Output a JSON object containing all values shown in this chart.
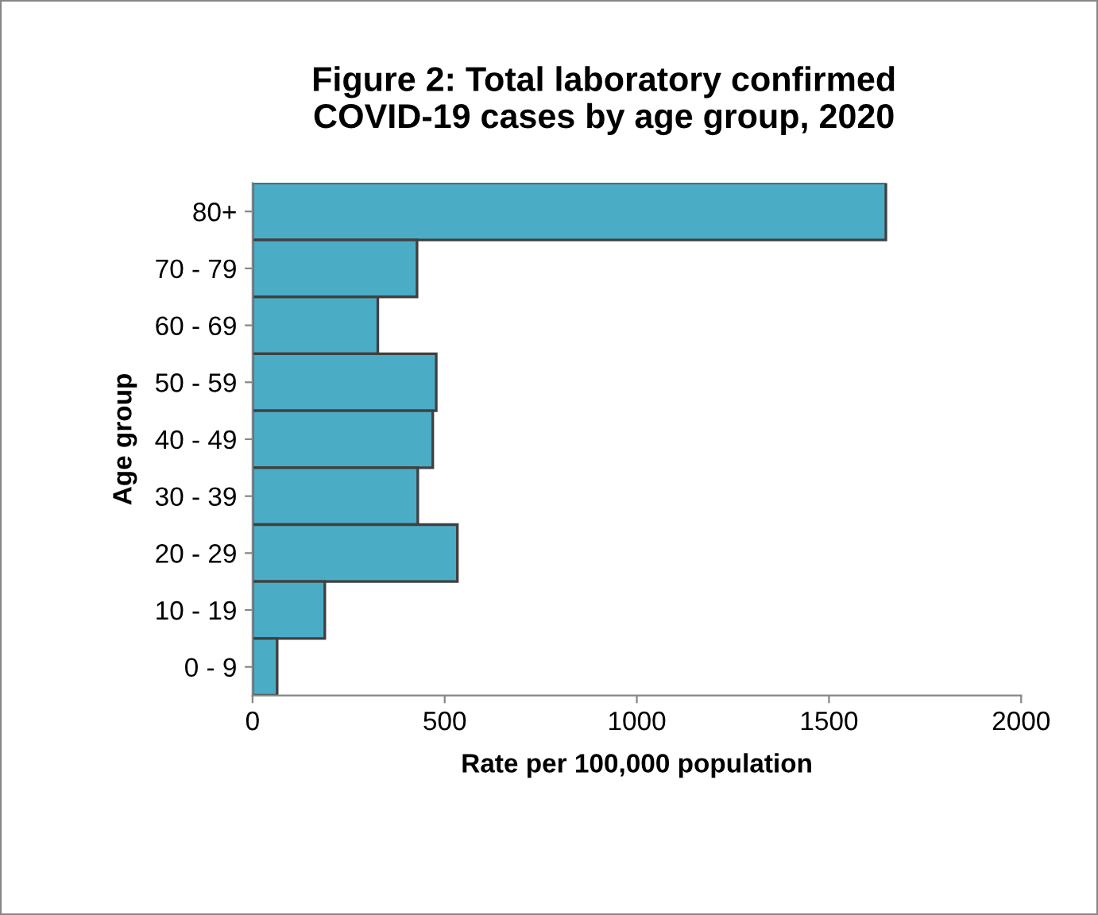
{
  "chart_data": {
    "type": "bar",
    "orientation": "horizontal",
    "title": "Figure 2: Total laboratory confirmed\nCOVID-19 cases by age group, 2020",
    "categories": [
      "80+",
      "70 - 79",
      "60 - 69",
      "50 - 59",
      "40 - 49",
      "30 - 39",
      "20 - 29",
      "10 - 19",
      "0 - 9"
    ],
    "values": [
      1648,
      428,
      326,
      478,
      469,
      430,
      533,
      188,
      64
    ],
    "color": "#4bacc6",
    "xlim": [
      0,
      2000
    ],
    "xticks": [
      0,
      500,
      1000,
      1500,
      2000
    ],
    "xlabel": "Rate per 100,000 population",
    "ylabel": "Age group",
    "grid": false
  }
}
